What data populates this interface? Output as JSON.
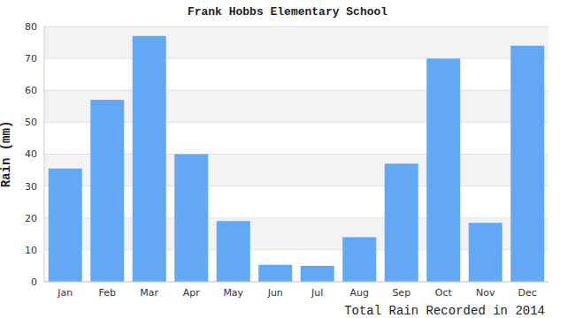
{
  "chart_data": {
    "type": "bar",
    "title": "Frank Hobbs Elementary School",
    "xlabel": "Total Rain Recorded in 2014",
    "ylabel": "Rain (mm)",
    "categories": [
      "Jan",
      "Feb",
      "Mar",
      "Apr",
      "May",
      "Jun",
      "Jul",
      "Aug",
      "Sep",
      "Oct",
      "Nov",
      "Dec"
    ],
    "values": [
      35.5,
      57,
      77,
      40,
      19,
      5.3,
      5,
      14,
      37,
      70,
      18.5,
      74
    ],
    "color": "#62a8f5",
    "ylim": [
      0,
      80
    ],
    "yticks": [
      0,
      10,
      20,
      30,
      40,
      50,
      60,
      70,
      80
    ],
    "grid": true
  }
}
